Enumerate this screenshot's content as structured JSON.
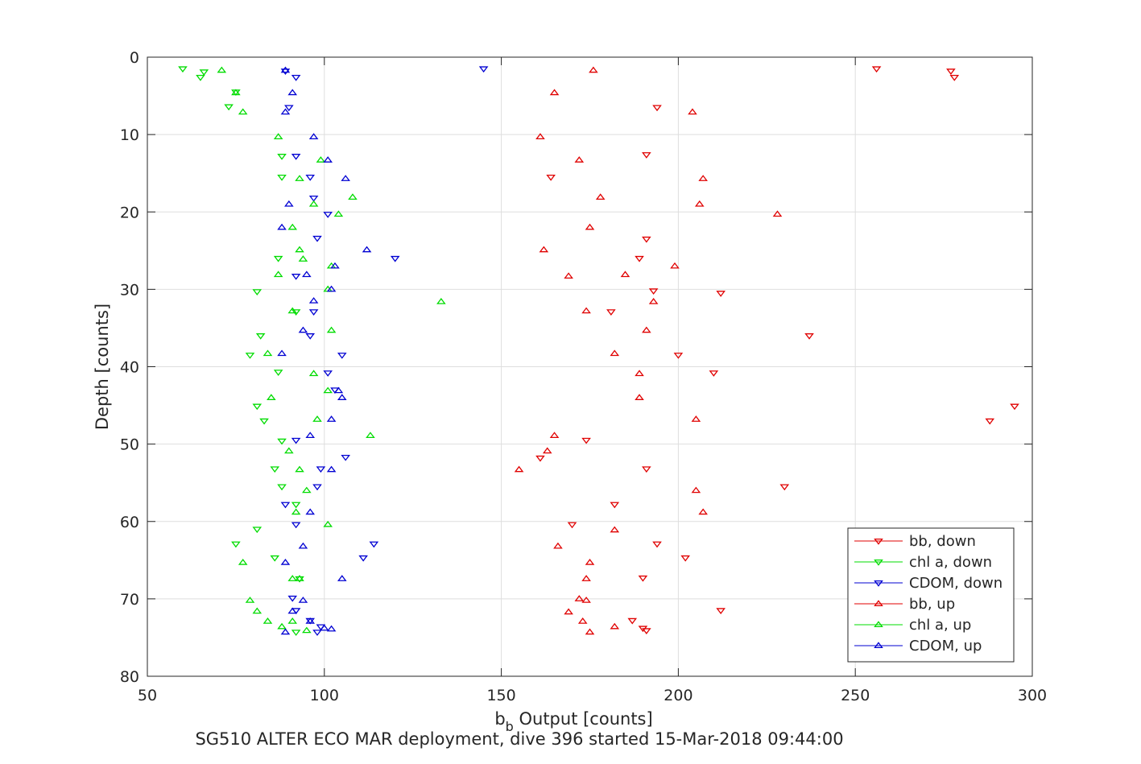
{
  "chart_data": {
    "type": "scatter",
    "xlabel_main": "b",
    "xlabel_sub": "b",
    "xlabel_rest": " Output [counts]",
    "ylabel": "Depth [counts]",
    "caption": "SG510 ALTER ECO MAR deployment, dive 396 started 15-Mar-2018 09:44:00",
    "xlim": [
      50,
      300
    ],
    "ylim": [
      0,
      80
    ],
    "y_reversed": true,
    "xticks": [
      "50",
      "100",
      "150",
      "200",
      "250",
      "300"
    ],
    "yticks": [
      "0",
      "10",
      "20",
      "30",
      "40",
      "50",
      "60",
      "70",
      "80"
    ],
    "grid": true,
    "legend_position": "bottom-right",
    "series": [
      {
        "name": "bb, down",
        "color": "#e00000",
        "marker": "triangle-down",
        "x": [
          256,
          277,
          278,
          194,
          191,
          164,
          191,
          189,
          193,
          212,
          181,
          237,
          200,
          210,
          295,
          288,
          174,
          161,
          191,
          230,
          182,
          170,
          194,
          202,
          190,
          212,
          187,
          190,
          191
        ],
        "y": [
          1.5,
          1.8,
          2.6,
          6.5,
          12.6,
          15.5,
          23.5,
          26.0,
          30.2,
          30.5,
          32.9,
          36.0,
          38.5,
          40.8,
          45.1,
          47.0,
          49.5,
          51.8,
          53.2,
          55.5,
          57.8,
          60.4,
          62.9,
          64.7,
          67.3,
          71.5,
          72.8,
          73.8,
          74.1
        ]
      },
      {
        "name": "chl a, down",
        "color": "#00dc00",
        "marker": "triangle-down",
        "x": [
          60,
          66,
          65,
          75,
          73,
          88,
          88,
          87,
          81,
          92,
          82,
          79,
          87,
          81,
          83,
          88,
          86,
          88,
          92,
          81,
          75,
          86,
          93,
          92
        ],
        "y": [
          1.5,
          1.9,
          2.6,
          4.5,
          6.4,
          12.8,
          15.5,
          26.0,
          30.3,
          32.9,
          36.0,
          38.5,
          40.7,
          45.1,
          47.0,
          49.6,
          53.2,
          55.5,
          57.8,
          61.0,
          62.9,
          64.7,
          67.4,
          74.3
        ]
      },
      {
        "name": "CDOM, down",
        "color": "#0000d2",
        "marker": "triangle-down",
        "x": [
          145,
          89,
          92,
          90,
          92,
          96,
          97,
          101,
          98,
          120,
          92,
          97,
          96,
          105,
          101,
          103,
          92,
          106,
          99,
          98,
          89,
          92,
          114,
          111,
          91,
          92,
          96,
          98,
          99
        ],
        "y": [
          1.5,
          1.8,
          2.6,
          6.5,
          12.8,
          15.5,
          18.2,
          20.3,
          23.4,
          26.0,
          28.3,
          32.9,
          36.0,
          38.5,
          40.8,
          43.0,
          49.5,
          51.7,
          53.2,
          55.5,
          57.8,
          60.4,
          62.9,
          64.7,
          69.9,
          71.5,
          72.8,
          74.3,
          73.6
        ]
      },
      {
        "name": "bb, up",
        "color": "#e00000",
        "marker": "triangle-up",
        "x": [
          176,
          165,
          204,
          161,
          172,
          207,
          178,
          206,
          228,
          175,
          162,
          199,
          169,
          185,
          193,
          174,
          191,
          182,
          189,
          189,
          205,
          165,
          163,
          155,
          205,
          207,
          182,
          166,
          175,
          174,
          172,
          174,
          169,
          173,
          182,
          175
        ],
        "y": [
          1.7,
          4.6,
          7.1,
          10.3,
          13.3,
          15.7,
          18.1,
          19.0,
          20.3,
          22.0,
          24.9,
          27.0,
          28.3,
          28.1,
          31.6,
          32.8,
          35.3,
          38.3,
          40.9,
          44.0,
          46.8,
          48.9,
          50.9,
          53.3,
          56.0,
          58.8,
          61.1,
          63.2,
          65.3,
          67.4,
          70.0,
          70.2,
          71.7,
          72.9,
          73.6,
          74.3
        ]
      },
      {
        "name": "chl a, up",
        "color": "#00dc00",
        "marker": "triangle-up",
        "x": [
          71,
          75,
          77,
          87,
          99,
          93,
          108,
          97,
          104,
          91,
          93,
          94,
          102,
          87,
          101,
          133,
          91,
          102,
          84,
          97,
          85,
          101,
          98,
          113,
          90,
          93,
          95,
          92,
          101,
          77,
          91,
          93,
          79,
          81,
          84,
          88,
          91,
          95
        ],
        "y": [
          1.7,
          4.6,
          7.1,
          10.3,
          13.3,
          15.7,
          18.1,
          19.0,
          20.3,
          22.0,
          24.9,
          26.1,
          27.0,
          28.1,
          30.0,
          31.6,
          32.8,
          35.3,
          38.3,
          40.9,
          44.0,
          43.1,
          46.8,
          48.9,
          50.9,
          53.3,
          56.0,
          58.8,
          60.4,
          65.3,
          67.4,
          67.4,
          70.2,
          71.6,
          72.9,
          73.6,
          72.9,
          74.1
        ]
      },
      {
        "name": "CDOM, up",
        "color": "#0000d2",
        "marker": "triangle-up",
        "x": [
          89,
          91,
          89,
          97,
          101,
          106,
          90,
          88,
          112,
          103,
          95,
          102,
          97,
          94,
          88,
          105,
          104,
          102,
          96,
          102,
          96,
          94,
          89,
          105,
          94,
          91,
          96,
          100,
          102,
          89
        ],
        "y": [
          1.7,
          4.6,
          7.1,
          10.3,
          13.3,
          15.7,
          19.0,
          22.0,
          24.9,
          27.0,
          28.1,
          30.0,
          31.5,
          35.3,
          38.3,
          44.0,
          43.1,
          46.8,
          48.9,
          53.3,
          58.8,
          63.2,
          65.3,
          67.4,
          70.2,
          71.6,
          72.9,
          73.8,
          73.9,
          74.3
        ]
      }
    ]
  }
}
